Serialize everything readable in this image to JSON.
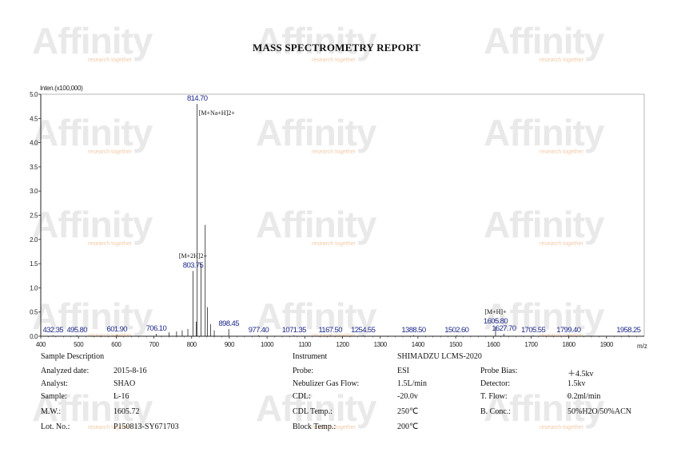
{
  "watermark": {
    "brand": "Affinity",
    "tagline": "research together"
  },
  "report": {
    "title": "MASS SPECTROMETRY REPORT"
  },
  "chart_data": {
    "type": "line",
    "ylabel": "Inten.(x100,000)",
    "xlabel": "m/z",
    "xlim": [
      400,
      2000
    ],
    "ylim": [
      0,
      5.0
    ],
    "x_ticks": [
      400,
      500,
      600,
      700,
      800,
      900,
      1000,
      1100,
      1200,
      1300,
      1400,
      1500,
      1600,
      1700,
      1800,
      1900
    ],
    "x_tick_labels": [
      "400",
      "500",
      "600",
      "700",
      "800",
      "900",
      "1000",
      "1100",
      "1200",
      "1300",
      "1400",
      "1500",
      "1600",
      "1700",
      "1800",
      "1900"
    ],
    "y_ticks": [
      0,
      0.5,
      1.0,
      1.5,
      2.0,
      2.5,
      3.0,
      3.5,
      4.0,
      4.5,
      5.0
    ],
    "y_tick_labels": [
      "0.0",
      "0.5",
      "1.0",
      "1.5",
      "2.0",
      "2.5",
      "3.0",
      "3.5",
      "4.0",
      "4.5",
      "5.0"
    ],
    "labeled_peaks": [
      {
        "mz": 432.35,
        "label": "432.35",
        "intensity": 0.02
      },
      {
        "mz": 495.8,
        "label": "495.80",
        "intensity": 0.02
      },
      {
        "mz": 601.9,
        "label": "601.90",
        "intensity": 0.03
      },
      {
        "mz": 706.1,
        "label": "706.10",
        "intensity": 0.05
      },
      {
        "mz": 803.75,
        "label": "803.75",
        "intensity": 1.35
      },
      {
        "mz": 814.7,
        "label": "814.70",
        "intensity": 4.8
      },
      {
        "mz": 898.45,
        "label": "898.45",
        "intensity": 0.15
      },
      {
        "mz": 977.4,
        "label": "977.40",
        "intensity": 0.02
      },
      {
        "mz": 1071.35,
        "label": "1071.35",
        "intensity": 0.02
      },
      {
        "mz": 1167.5,
        "label": "1167.50",
        "intensity": 0.02
      },
      {
        "mz": 1254.55,
        "label": "1254.55",
        "intensity": 0.02
      },
      {
        "mz": 1388.5,
        "label": "1388.50",
        "intensity": 0.02
      },
      {
        "mz": 1502.6,
        "label": "1502.60",
        "intensity": 0.02
      },
      {
        "mz": 1605.8,
        "label": "1605.80",
        "intensity": 0.2
      },
      {
        "mz": 1627.7,
        "label": "1627.70",
        "intensity": 0.05
      },
      {
        "mz": 1705.55,
        "label": "1705.55",
        "intensity": 0.02
      },
      {
        "mz": 1799.4,
        "label": "1799.40",
        "intensity": 0.02
      },
      {
        "mz": 1958.25,
        "label": "1958.25",
        "intensity": 0.02
      }
    ],
    "minor_peaks": [
      {
        "mz": 790,
        "intensity": 0.15
      },
      {
        "mz": 812,
        "intensity": 0.3
      },
      {
        "mz": 825,
        "intensity": 1.5
      },
      {
        "mz": 836,
        "intensity": 2.3
      },
      {
        "mz": 842,
        "intensity": 0.6
      },
      {
        "mz": 850,
        "intensity": 0.25
      },
      {
        "mz": 860,
        "intensity": 0.12
      },
      {
        "mz": 740,
        "intensity": 0.08
      },
      {
        "mz": 760,
        "intensity": 0.1
      },
      {
        "mz": 775,
        "intensity": 0.12
      }
    ],
    "annotations": [
      {
        "text": "[M+Na+H]2+",
        "mz": 814.7
      },
      {
        "text": "[M+2H]2+",
        "mz": 803.75
      },
      {
        "text": "[M+H]+",
        "mz": 1605.8
      }
    ]
  },
  "info": {
    "sample_description": "Sample Description",
    "instrument_label": "Instrument",
    "instrument_value": "SHIMADZU LCMS-2020",
    "rows": [
      {
        "l1": "Analyzed date:",
        "v1": "2015-8-16",
        "l2": "Probe:",
        "v2": "ESI",
        "l3": "Probe Bias:",
        "v3": "＋4.5kv"
      },
      {
        "l1": "Analyst:",
        "v1": "SHAO",
        "l2": "Nebulizer Gas Flow:",
        "v2": "1.5L/min",
        "l3": "Detector:",
        "v3": "1.5kv"
      },
      {
        "l1": "Sample:",
        "v1": "L-16",
        "l2": "CDL:",
        "v2": "-20.0v",
        "l3": "T. Flow:",
        "v3": "0.2ml/min"
      },
      {
        "l1": "M.W.:",
        "v1": "1605.72",
        "l2": "CDL Temp.:",
        "v2": "250℃",
        "l3": "B. Conc.:",
        "v3": "50%H2O/50%ACN"
      },
      {
        "l1": "Lot. No.:",
        "v1": "P150813-SY671703",
        "l2": "Block Temp.:",
        "v2": "200℃",
        "l3": "",
        "v3": ""
      }
    ]
  }
}
